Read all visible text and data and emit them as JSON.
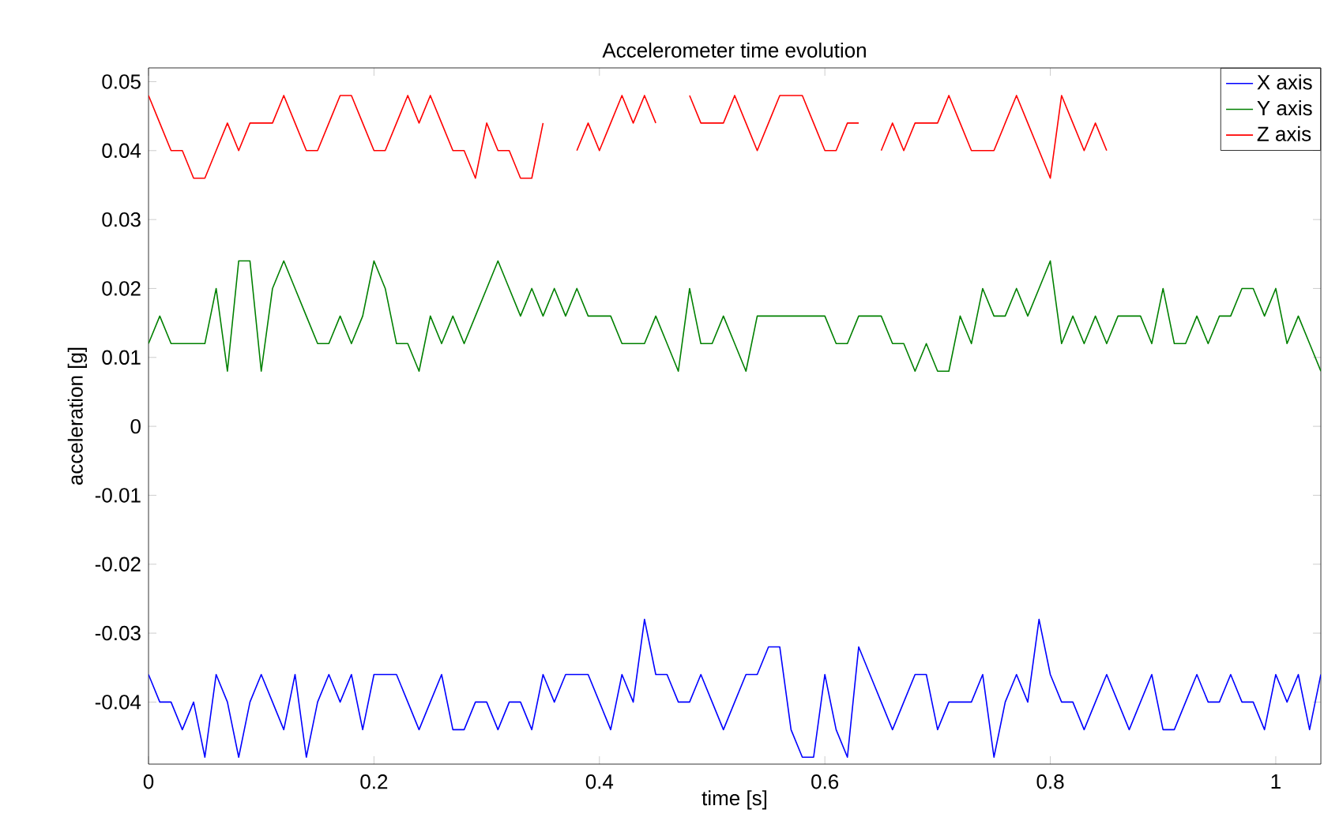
{
  "chart_data": {
    "type": "line",
    "title": "Accelerometer time evolution",
    "xlabel": "time [s]",
    "ylabel": "acceleration [g]",
    "x": [
      0,
      0.01,
      0.02,
      0.03,
      0.04,
      0.05,
      0.06,
      0.07,
      0.08,
      0.09,
      0.1,
      0.11,
      0.12,
      0.13,
      0.14,
      0.15,
      0.16,
      0.17,
      0.18,
      0.19,
      0.2,
      0.21,
      0.22,
      0.23,
      0.24,
      0.25,
      0.26,
      0.27,
      0.28,
      0.29,
      0.3,
      0.31,
      0.32,
      0.33,
      0.34,
      0.35,
      0.36,
      0.37,
      0.38,
      0.39,
      0.4,
      0.41,
      0.42,
      0.43,
      0.44,
      0.45,
      0.46,
      0.47,
      0.48,
      0.49,
      0.5,
      0.51,
      0.52,
      0.53,
      0.54,
      0.55,
      0.56,
      0.57,
      0.58,
      0.59,
      0.6,
      0.61,
      0.62,
      0.63,
      0.64,
      0.65,
      0.66,
      0.67,
      0.68,
      0.69,
      0.7,
      0.71,
      0.72,
      0.73,
      0.74,
      0.75,
      0.76,
      0.77,
      0.78,
      0.79,
      0.8,
      0.81,
      0.82,
      0.83,
      0.84,
      0.85,
      0.86,
      0.87,
      0.88,
      0.89,
      0.9,
      0.91,
      0.92,
      0.93,
      0.94,
      0.95,
      0.96,
      0.97,
      0.98,
      0.99,
      1.0,
      1.01,
      1.02,
      1.03,
      1.04
    ],
    "series": [
      {
        "name": "X axis",
        "color": "#0000ff",
        "values": [
          -0.036,
          -0.04,
          -0.04,
          -0.044,
          -0.04,
          -0.048,
          -0.036,
          -0.04,
          -0.048,
          -0.04,
          -0.036,
          -0.04,
          -0.044,
          -0.036,
          -0.048,
          -0.04,
          -0.036,
          -0.04,
          -0.036,
          -0.044,
          -0.036,
          -0.036,
          -0.036,
          -0.04,
          -0.044,
          -0.04,
          -0.036,
          -0.044,
          -0.044,
          -0.04,
          -0.04,
          -0.044,
          -0.04,
          -0.04,
          -0.044,
          -0.036,
          -0.04,
          -0.036,
          -0.036,
          -0.036,
          -0.04,
          -0.044,
          -0.036,
          -0.04,
          -0.028,
          -0.036,
          -0.036,
          -0.04,
          -0.04,
          -0.036,
          -0.04,
          -0.044,
          -0.04,
          -0.036,
          -0.036,
          -0.032,
          -0.032,
          -0.044,
          -0.048,
          -0.048,
          -0.036,
          -0.044,
          -0.048,
          -0.032,
          -0.036,
          -0.04,
          -0.044,
          -0.04,
          -0.036,
          -0.036,
          -0.044,
          -0.04,
          -0.04,
          -0.04,
          -0.036,
          -0.048,
          -0.04,
          -0.036,
          -0.04,
          -0.028,
          -0.036,
          -0.04,
          -0.04,
          -0.044,
          -0.04,
          -0.036,
          -0.04,
          -0.044,
          -0.04,
          -0.036,
          -0.044,
          -0.044,
          -0.04,
          -0.036,
          -0.04,
          -0.04,
          -0.036,
          -0.04,
          -0.04,
          -0.044,
          -0.036,
          -0.04,
          -0.036,
          -0.044,
          -0.036
        ]
      },
      {
        "name": "Y axis",
        "color": "#008000",
        "values": [
          0.012,
          0.016,
          0.012,
          0.012,
          0.012,
          0.012,
          0.02,
          0.008,
          0.024,
          0.024,
          0.008,
          0.02,
          0.024,
          0.02,
          0.016,
          0.012,
          0.012,
          0.016,
          0.012,
          0.016,
          0.024,
          0.02,
          0.012,
          0.012,
          0.008,
          0.016,
          0.012,
          0.016,
          0.012,
          0.016,
          0.02,
          0.024,
          0.02,
          0.016,
          0.02,
          0.016,
          0.02,
          0.016,
          0.02,
          0.016,
          0.016,
          0.016,
          0.012,
          0.012,
          0.012,
          0.016,
          0.012,
          0.008,
          0.02,
          0.012,
          0.012,
          0.016,
          0.012,
          0.008,
          0.016,
          0.016,
          0.016,
          0.016,
          0.016,
          0.016,
          0.016,
          0.012,
          0.012,
          0.016,
          0.016,
          0.016,
          0.012,
          0.012,
          0.008,
          0.012,
          0.008,
          0.008,
          0.016,
          0.012,
          0.02,
          0.016,
          0.016,
          0.02,
          0.016,
          0.02,
          0.024,
          0.012,
          0.016,
          0.012,
          0.016,
          0.012,
          0.016,
          0.016,
          0.016,
          0.012,
          0.02,
          0.012,
          0.012,
          0.016,
          0.012,
          0.016,
          0.016,
          0.02,
          0.02,
          0.016,
          0.02,
          0.012,
          0.016,
          0.012,
          0.008
        ]
      },
      {
        "name": "Z axis",
        "color": "#ff0000",
        "values": [
          0.048,
          0.044,
          0.04,
          0.04,
          0.036,
          0.036,
          0.04,
          0.044,
          0.04,
          0.044,
          0.044,
          0.044,
          0.048,
          0.044,
          0.04,
          0.04,
          0.044,
          0.048,
          0.048,
          0.044,
          0.04,
          0.04,
          0.044,
          0.048,
          0.044,
          0.048,
          0.044,
          0.04,
          0.04,
          0.036,
          0.044,
          0.04,
          0.04,
          0.036,
          0.036,
          0.044,
          null,
          null,
          0.04,
          0.044,
          0.04,
          0.044,
          0.048,
          0.044,
          0.048,
          0.044,
          null,
          null,
          0.048,
          0.044,
          0.044,
          0.044,
          0.048,
          0.044,
          0.04,
          0.044,
          0.048,
          0.048,
          0.048,
          0.044,
          0.04,
          0.04,
          0.044,
          0.044,
          null,
          0.04,
          0.044,
          0.04,
          0.044,
          0.044,
          0.044,
          0.048,
          0.044,
          0.04,
          0.04,
          0.04,
          0.044,
          0.048,
          0.044,
          0.04,
          0.036,
          0.048,
          0.044,
          0.04,
          0.044,
          0.04,
          null,
          null,
          null,
          null,
          null,
          null,
          null,
          null,
          null,
          null,
          null,
          null,
          null,
          null,
          null,
          null,
          null,
          null,
          null
        ]
      }
    ],
    "xlim": [
      0,
      1.04
    ],
    "ylim": [
      -0.049,
      0.052
    ],
    "xticks": [
      0,
      0.2,
      0.4,
      0.6,
      0.8,
      1
    ],
    "yticks": [
      -0.04,
      -0.03,
      -0.02,
      -0.01,
      0,
      0.01,
      0.02,
      0.03,
      0.04,
      0.05
    ],
    "grid": false,
    "legend": "top right",
    "marker": "none",
    "line_style": "solid"
  }
}
